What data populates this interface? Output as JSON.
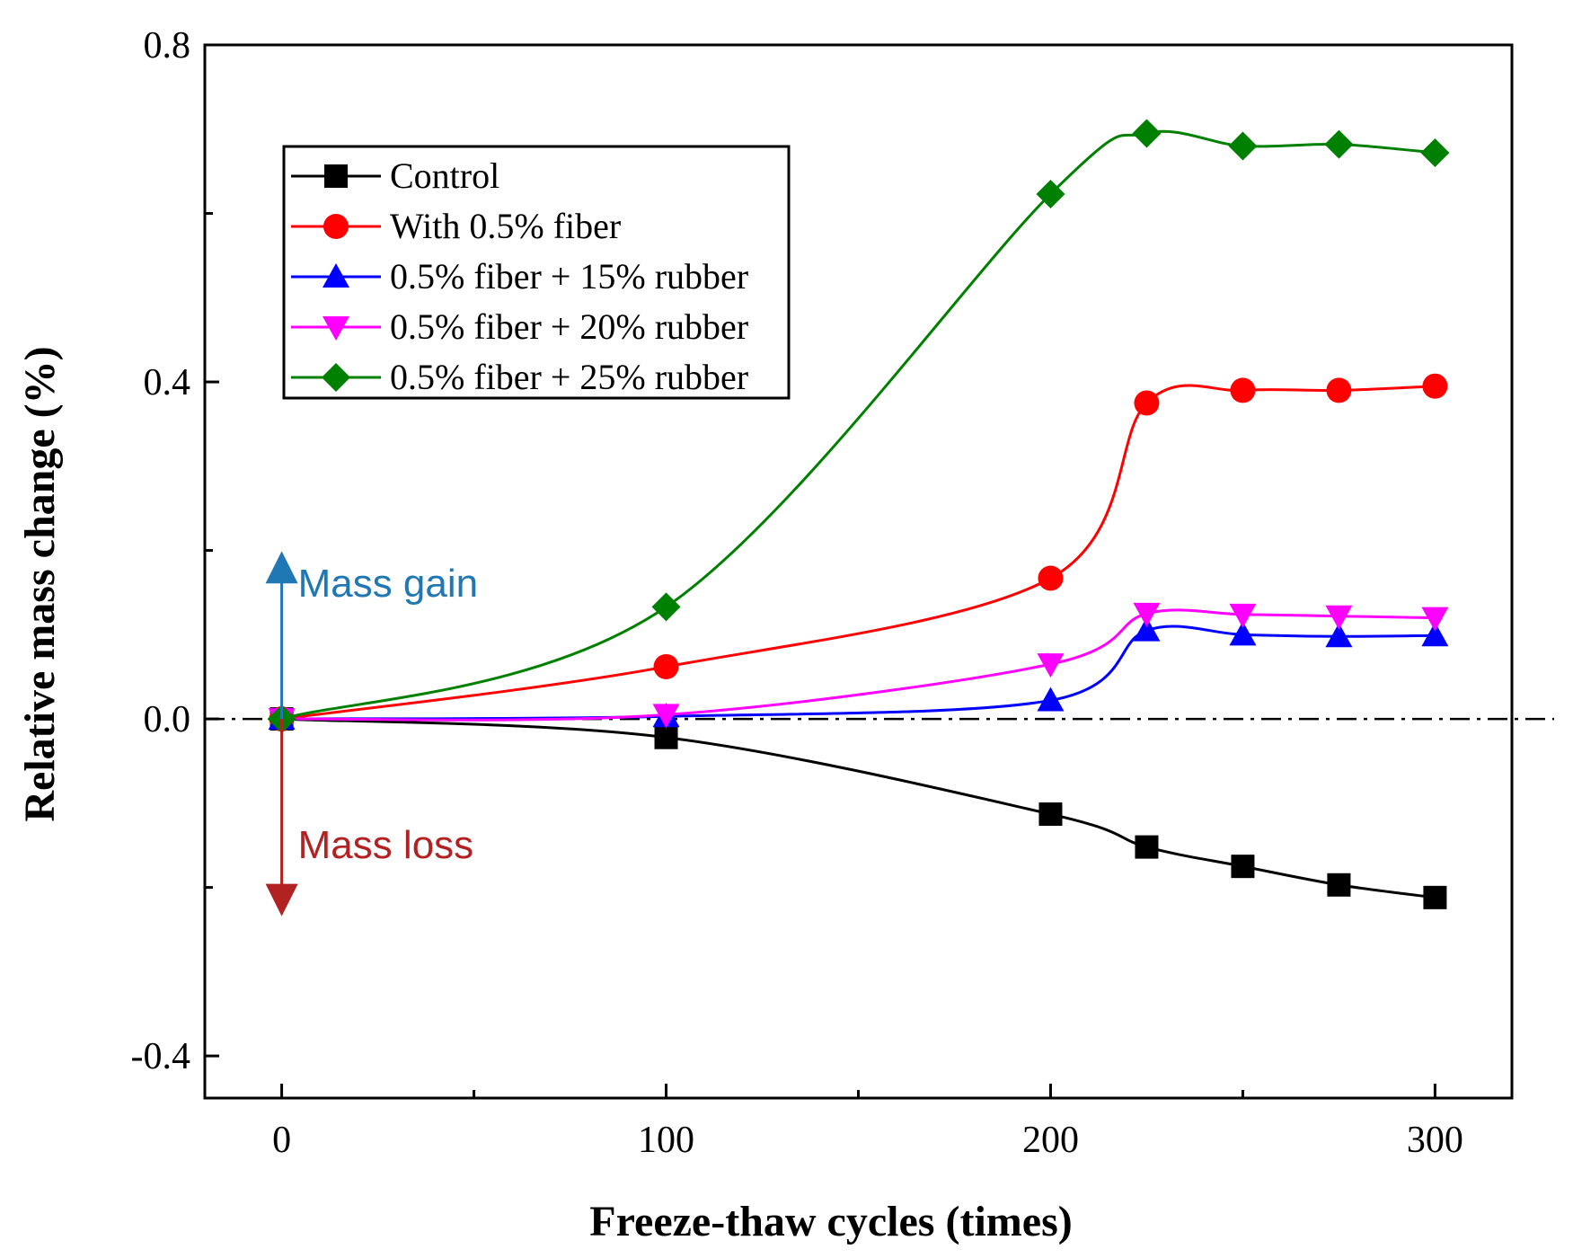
{
  "chart_data": {
    "type": "line",
    "title": "",
    "xlabel": "Freeze-thaw cycles (times)",
    "ylabel": "Relative mass change (%)",
    "xlim": [
      -20,
      320
    ],
    "ylim": [
      -0.45,
      0.8
    ],
    "x_ticks": [
      0,
      100,
      200,
      300
    ],
    "x_tick_labels": [
      "0",
      "100",
      "200",
      "300"
    ],
    "y_ticks": [
      -0.4,
      0.0,
      0.4,
      0.8
    ],
    "y_tick_labels": [
      "-0.4",
      "0.0",
      "0.4",
      "0.8"
    ],
    "grid": false,
    "legend_position": "top-left",
    "reference_line": {
      "y": 0.0,
      "style": "dash-dot"
    },
    "series": [
      {
        "name": "Control",
        "color": "#000000",
        "marker": "square",
        "x": [
          0,
          100,
          200,
          225,
          250,
          275,
          300
        ],
        "y": [
          0.0,
          -0.022,
          -0.113,
          -0.152,
          -0.175,
          -0.197,
          -0.212
        ]
      },
      {
        "name": "With 0.5% fiber",
        "color": "#ff0000",
        "marker": "circle",
        "x": [
          0,
          100,
          200,
          225,
          250,
          275,
          300
        ],
        "y": [
          0.0,
          0.062,
          0.167,
          0.375,
          0.39,
          0.39,
          0.395
        ]
      },
      {
        "name": "0.5% fiber + 15% rubber",
        "color": "#0000ff",
        "marker": "triangle-up",
        "x": [
          0,
          100,
          200,
          225,
          250,
          275,
          300
        ],
        "y": [
          0.0,
          0.003,
          0.022,
          0.105,
          0.1,
          0.098,
          0.099
        ]
      },
      {
        "name": "0.5% fiber + 20% rubber",
        "color": "#ff00ff",
        "marker": "triangle-down",
        "x": [
          0,
          100,
          200,
          225,
          250,
          275,
          300
        ],
        "y": [
          0.0,
          0.005,
          0.065,
          0.125,
          0.124,
          0.122,
          0.12
        ]
      },
      {
        "name": "0.5% fiber + 25% rubber",
        "color": "#008000",
        "marker": "diamond",
        "x": [
          0,
          100,
          200,
          225,
          250,
          275,
          300
        ],
        "y": [
          0.0,
          0.133,
          0.623,
          0.695,
          0.68,
          0.682,
          0.672
        ]
      }
    ],
    "annotations": [
      {
        "text": "Mass gain",
        "color": "#1f77b4",
        "direction": "up",
        "x": 0,
        "y_from": 0.0,
        "y_to": 0.18
      },
      {
        "text": "Mass loss",
        "color": "#b22222",
        "direction": "down",
        "x": 0,
        "y_from": 0.0,
        "y_to": -0.215
      }
    ]
  }
}
